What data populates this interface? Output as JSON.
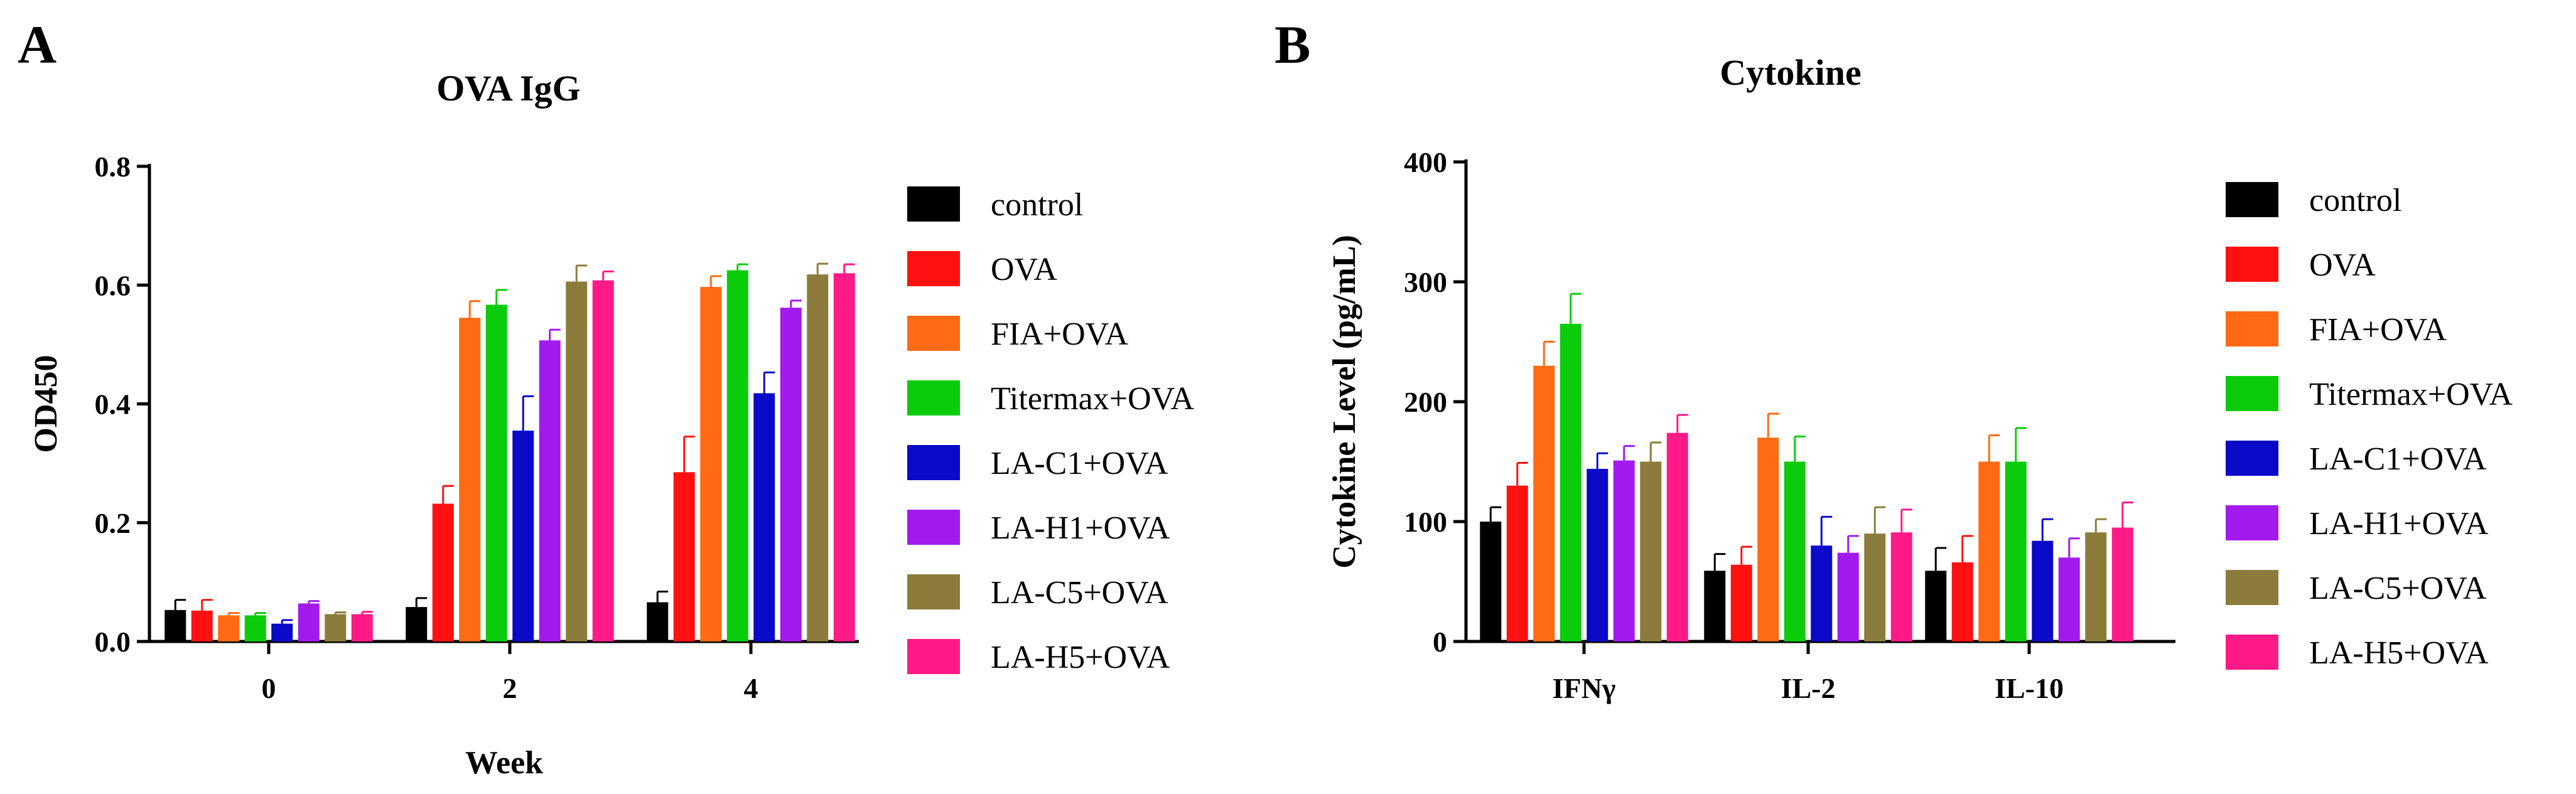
{
  "panels": {
    "a": {
      "letter": "A"
    },
    "b": {
      "letter": "B"
    }
  },
  "chart_data": [
    {
      "type": "bar",
      "title": "OVA IgG",
      "xlabel": "Week",
      "ylabel": "OD450",
      "ylim": [
        0,
        0.8
      ],
      "yticks": [
        "0.0",
        "0.2",
        "0.4",
        "0.6",
        "0.8"
      ],
      "ytick_values": [
        0,
        0.2,
        0.4,
        0.6,
        0.8
      ],
      "categories": [
        "0",
        "2",
        "4"
      ],
      "legend_position": "right",
      "series": [
        {
          "name": "control",
          "color": "#000000",
          "values": [
            0.053,
            0.058,
            0.066
          ],
          "errors": [
            0.017,
            0.015,
            0.018
          ]
        },
        {
          "name": "OVA",
          "color": "#ff1111",
          "values": [
            0.052,
            0.232,
            0.285
          ],
          "errors": [
            0.018,
            0.03,
            0.06
          ]
        },
        {
          "name": "FIA+OVA",
          "color": "#ff6a13",
          "values": [
            0.044,
            0.545,
            0.597
          ],
          "errors": [
            0.004,
            0.028,
            0.018
          ]
        },
        {
          "name": "Titermax+OVA",
          "color": "#0acc0a",
          "values": [
            0.044,
            0.567,
            0.625
          ],
          "errors": [
            0.004,
            0.025,
            0.01
          ]
        },
        {
          "name": "LA-C1+OVA",
          "color": "#0a0ac8",
          "values": [
            0.03,
            0.355,
            0.418
          ],
          "errors": [
            0.006,
            0.058,
            0.035
          ]
        },
        {
          "name": "LA-H1+OVA",
          "color": "#a31aee",
          "values": [
            0.064,
            0.507,
            0.562
          ],
          "errors": [
            0.004,
            0.018,
            0.012
          ]
        },
        {
          "name": "LA-C5+OVA",
          "color": "#8c7c3c",
          "values": [
            0.046,
            0.606,
            0.618
          ],
          "errors": [
            0.003,
            0.027,
            0.018
          ]
        },
        {
          "name": "LA-H5+OVA",
          "color": "#ff1a88",
          "values": [
            0.046,
            0.608,
            0.62
          ],
          "errors": [
            0.004,
            0.015,
            0.015
          ]
        }
      ]
    },
    {
      "type": "bar",
      "title": "Cytokine",
      "xlabel": "",
      "ylabel": "Cytokine Level (pg/mL)",
      "ylim": [
        0,
        400
      ],
      "yticks": [
        "0",
        "100",
        "200",
        "300",
        "400"
      ],
      "ytick_values": [
        0,
        100,
        200,
        300,
        400
      ],
      "categories": [
        "IFNγ",
        "IL-2",
        "IL-10"
      ],
      "legend_position": "right",
      "series": [
        {
          "name": "control",
          "color": "#000000",
          "values": [
            100,
            59,
            59
          ],
          "errors": [
            12,
            14,
            19
          ]
        },
        {
          "name": "OVA",
          "color": "#ff1111",
          "values": [
            130,
            64,
            66
          ],
          "errors": [
            19,
            15,
            22
          ]
        },
        {
          "name": "FIA+OVA",
          "color": "#ff6a13",
          "values": [
            230,
            170,
            150
          ],
          "errors": [
            20,
            20,
            22
          ]
        },
        {
          "name": "Titermax+OVA",
          "color": "#0acc0a",
          "values": [
            265,
            150,
            150
          ],
          "errors": [
            25,
            21,
            28
          ]
        },
        {
          "name": "LA-C1+OVA",
          "color": "#0a0ac8",
          "values": [
            144,
            80,
            84
          ],
          "errors": [
            13,
            24,
            18
          ]
        },
        {
          "name": "LA-H1+OVA",
          "color": "#a31aee",
          "values": [
            151,
            74,
            70
          ],
          "errors": [
            12,
            14,
            16
          ]
        },
        {
          "name": "LA-C5+OVA",
          "color": "#8c7c3c",
          "values": [
            150,
            90,
            91
          ],
          "errors": [
            16,
            22,
            11
          ]
        },
        {
          "name": "LA-H5+OVA",
          "color": "#ff1a88",
          "values": [
            174,
            91,
            95
          ],
          "errors": [
            15,
            19,
            21
          ]
        }
      ]
    }
  ]
}
